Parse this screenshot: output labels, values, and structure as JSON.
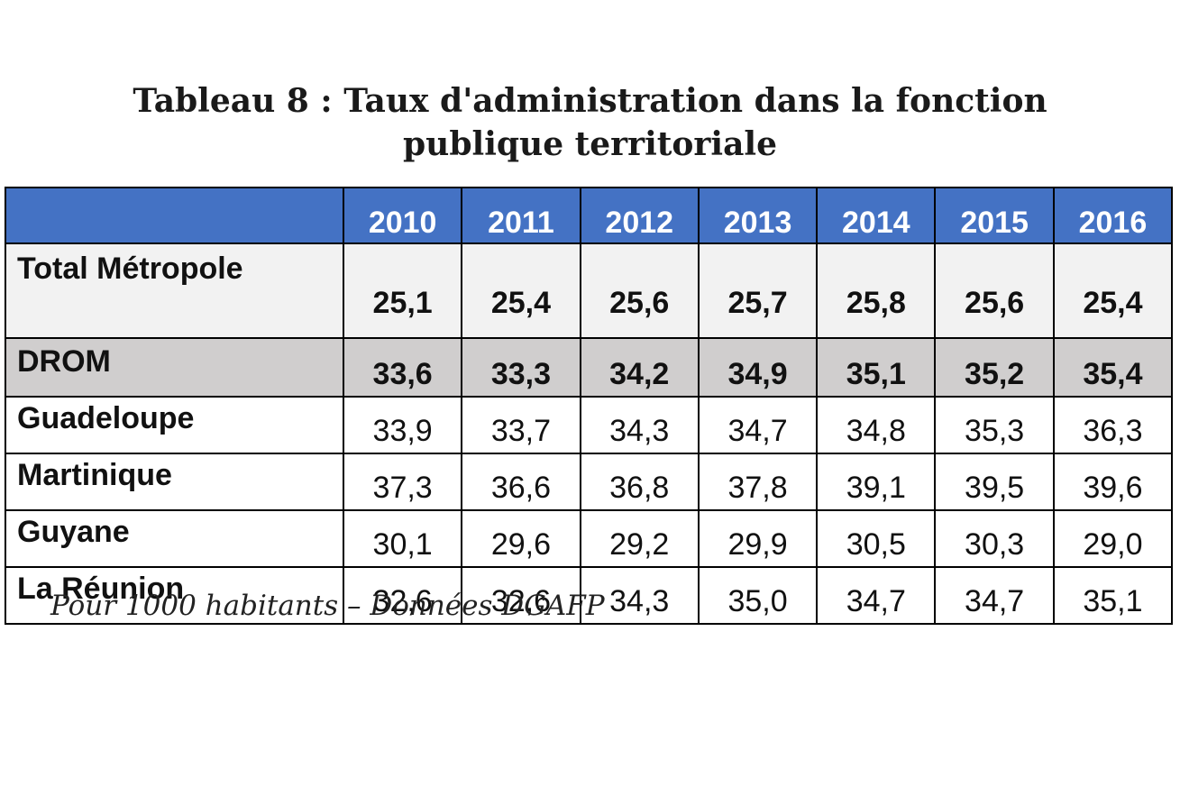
{
  "title": {
    "line1": "Tableau 8 : Taux d'administration dans la fonction",
    "line2": "publique territoriale"
  },
  "footnote": "Pour 1000 habitants – Données DGAFP",
  "colors": {
    "header_bg": "#4472c4",
    "header_text": "#ffffff",
    "metro_bg": "#f2f2f2",
    "drom_bg": "#d0cece",
    "border": "#000000"
  },
  "chart_data": {
    "type": "table",
    "title": "Tableau 8 : Taux d'administration dans la fonction publique territoriale",
    "columns": [
      "2010",
      "2011",
      "2012",
      "2013",
      "2014",
      "2015",
      "2016"
    ],
    "rows": [
      {
        "label": "Total Métropole",
        "values": [
          "25,1",
          "25,4",
          "25,6",
          "25,7",
          "25,8",
          "25,6",
          "25,4"
        ]
      },
      {
        "label": "DROM",
        "values": [
          "33,6",
          "33,3",
          "34,2",
          "34,9",
          "35,1",
          "35,2",
          "35,4"
        ]
      },
      {
        "label": "Guadeloupe",
        "values": [
          "33,9",
          "33,7",
          "34,3",
          "34,7",
          "34,8",
          "35,3",
          "36,3"
        ]
      },
      {
        "label": "Martinique",
        "values": [
          "37,3",
          "36,6",
          "36,8",
          "37,8",
          "39,1",
          "39,5",
          "39,6"
        ]
      },
      {
        "label": "Guyane",
        "values": [
          "30,1",
          "29,6",
          "29,2",
          "29,9",
          "30,5",
          "30,3",
          "29,0"
        ]
      },
      {
        "label": "La Réunion",
        "values": [
          "32,6",
          "32,6",
          "34,3",
          "35,0",
          "34,7",
          "34,7",
          "35,1"
        ]
      }
    ]
  }
}
